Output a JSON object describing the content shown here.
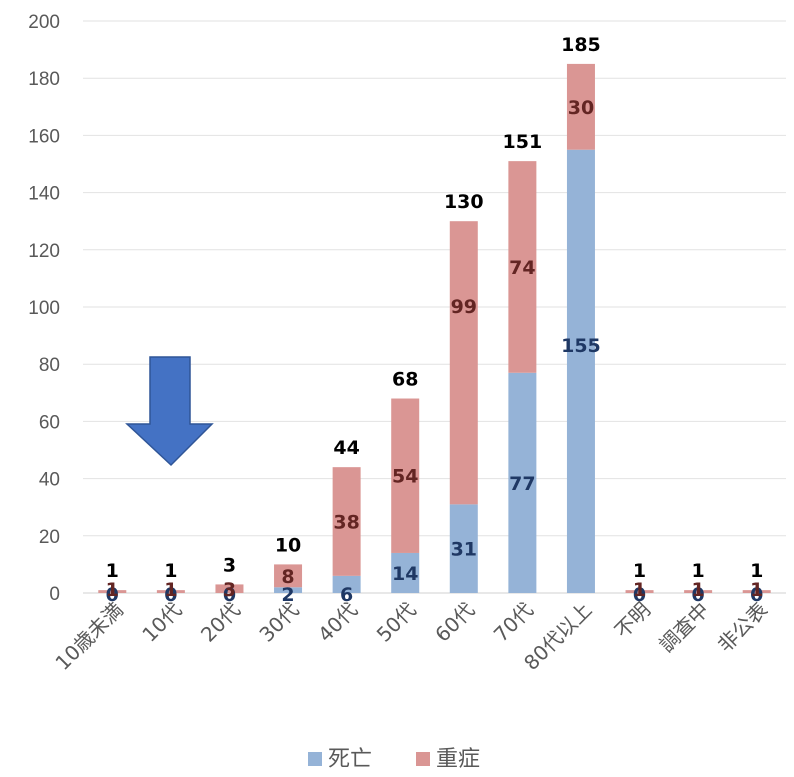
{
  "chart_data": {
    "type": "bar",
    "stacked": true,
    "categories": [
      "10歳未満",
      "10代",
      "20代",
      "30代",
      "40代",
      "50代",
      "60代",
      "70代",
      "80代以上",
      "不明",
      "調査中",
      "非公表"
    ],
    "series": [
      {
        "name": "死亡",
        "values": [
          0,
          0,
          0,
          2,
          6,
          14,
          31,
          77,
          155,
          0,
          0,
          0
        ],
        "color": "#95b3d7",
        "label_color": "#1f3864"
      },
      {
        "name": "重症",
        "values": [
          1,
          1,
          3,
          8,
          38,
          54,
          99,
          74,
          30,
          1,
          1,
          1
        ],
        "color": "#da9694",
        "label_color": "#632523"
      }
    ],
    "totals": [
      1,
      1,
      3,
      10,
      44,
      68,
      130,
      151,
      185,
      1,
      1,
      1
    ],
    "yticks": [
      "0",
      "20",
      "40",
      "60",
      "80",
      "100",
      "120",
      "140",
      "160",
      "180",
      "200"
    ],
    "ylim": [
      0,
      200
    ],
    "grid": true,
    "legend": "bottom",
    "annotation": {
      "type": "arrow",
      "direction": "down",
      "target_category": "10代",
      "color": "#4472c4"
    }
  }
}
